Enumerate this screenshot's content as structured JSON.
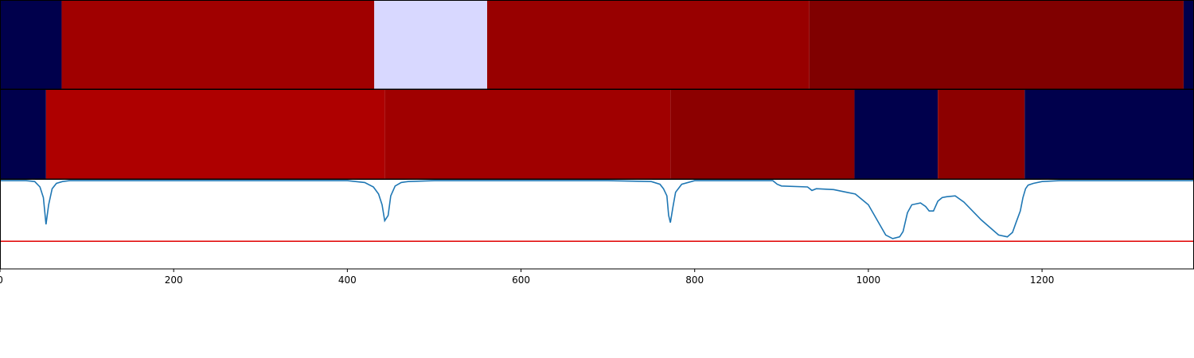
{
  "chart_data": {
    "type": "heatmap",
    "xlim": [
      0,
      1375
    ],
    "x_ticks": [
      "0",
      "200",
      "400",
      "600",
      "800",
      "1000",
      "1200"
    ],
    "x_tick_values": [
      0,
      200,
      400,
      600,
      800,
      1000,
      1200
    ],
    "heatmap_rows": [
      {
        "segments": [
          {
            "start": 0,
            "end": 71,
            "color": "#00004c"
          },
          {
            "start": 71,
            "end": 431,
            "color": "#a00000"
          },
          {
            "start": 431,
            "end": 561,
            "color": "#d8d8ff"
          },
          {
            "start": 561,
            "end": 932,
            "color": "#980000"
          },
          {
            "start": 932,
            "end": 1363,
            "color": "#800000"
          },
          {
            "start": 1363,
            "end": 1375,
            "color": "#00004c"
          }
        ]
      },
      {
        "segments": [
          {
            "start": 0,
            "end": 53,
            "color": "#00004c"
          },
          {
            "start": 53,
            "end": 443,
            "color": "#ae0000"
          },
          {
            "start": 443,
            "end": 772,
            "color": "#a00000"
          },
          {
            "start": 772,
            "end": 984,
            "color": "#8c0000"
          },
          {
            "start": 984,
            "end": 1080,
            "color": "#00004c"
          },
          {
            "start": 1080,
            "end": 1180,
            "color": "#8c0000"
          },
          {
            "start": 1180,
            "end": 1375,
            "color": "#00004c"
          }
        ]
      }
    ],
    "line_panel": {
      "ylim": [
        0,
        1
      ],
      "threshold": 0.31,
      "threshold_color": "#e00000",
      "line_color": "#1f77b4",
      "x": [
        0,
        10,
        20,
        30,
        40,
        46,
        50,
        53,
        56,
        60,
        65,
        72,
        80,
        100,
        200,
        300,
        400,
        420,
        430,
        436,
        440,
        443,
        447,
        450,
        455,
        462,
        470,
        500,
        600,
        700,
        750,
        760,
        764,
        768,
        770,
        772,
        775,
        778,
        785,
        800,
        850,
        890,
        895,
        900,
        930,
        935,
        940,
        960,
        975,
        985,
        990,
        1000,
        1010,
        1020,
        1028,
        1036,
        1040,
        1045,
        1050,
        1060,
        1066,
        1070,
        1075,
        1080,
        1085,
        1090,
        1100,
        1110,
        1130,
        1150,
        1160,
        1166,
        1170,
        1175,
        1178,
        1181,
        1184,
        1190,
        1200,
        1220,
        1250,
        1300,
        1375
      ],
      "y": [
        0.99,
        0.99,
        0.99,
        0.99,
        0.98,
        0.92,
        0.8,
        0.5,
        0.72,
        0.9,
        0.96,
        0.98,
        0.99,
        0.99,
        0.99,
        0.99,
        0.99,
        0.97,
        0.92,
        0.84,
        0.72,
        0.54,
        0.6,
        0.82,
        0.93,
        0.97,
        0.98,
        0.99,
        0.99,
        0.99,
        0.98,
        0.95,
        0.9,
        0.82,
        0.6,
        0.52,
        0.7,
        0.86,
        0.95,
        0.99,
        0.99,
        0.99,
        0.95,
        0.93,
        0.92,
        0.88,
        0.9,
        0.89,
        0.86,
        0.84,
        0.8,
        0.72,
        0.55,
        0.38,
        0.34,
        0.36,
        0.42,
        0.63,
        0.72,
        0.74,
        0.7,
        0.65,
        0.65,
        0.76,
        0.8,
        0.81,
        0.82,
        0.75,
        0.55,
        0.38,
        0.36,
        0.41,
        0.52,
        0.65,
        0.8,
        0.9,
        0.94,
        0.96,
        0.98,
        0.99,
        0.99,
        0.99,
        0.99
      ]
    }
  }
}
